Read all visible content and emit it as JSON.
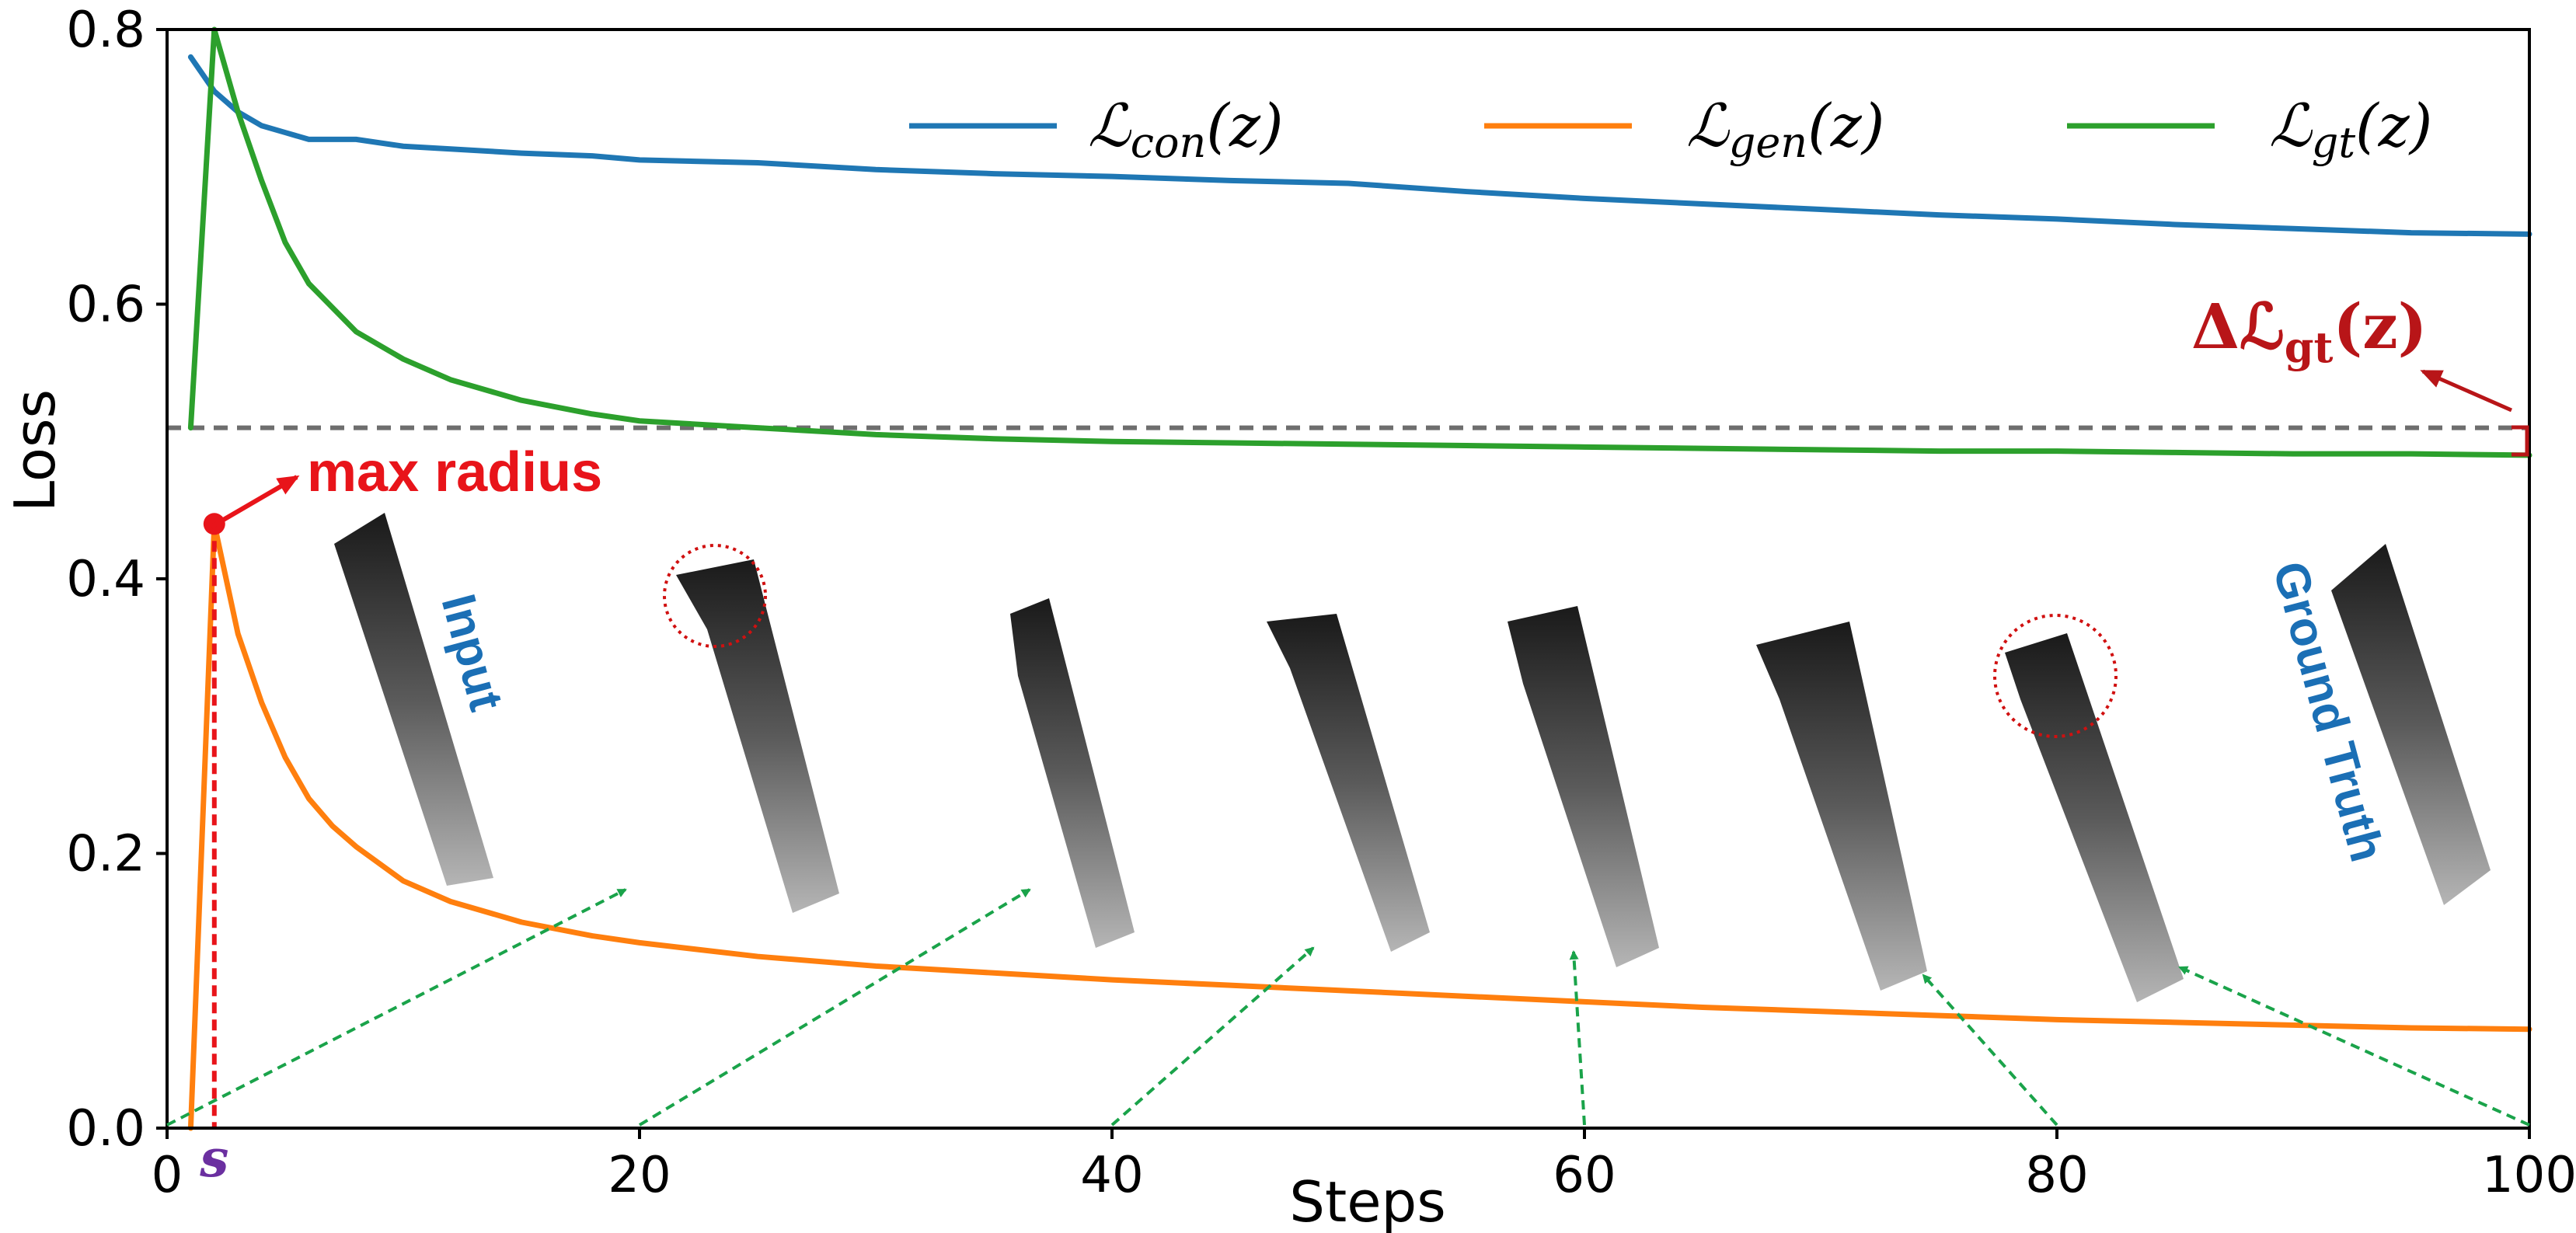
{
  "chart_data": {
    "type": "line",
    "xlabel": "Steps",
    "ylabel": "Loss",
    "xlim": [
      0,
      100
    ],
    "ylim": [
      0,
      0.8
    ],
    "xticks": [
      "0",
      "20",
      "40",
      "60",
      "80",
      "100"
    ],
    "yticks": [
      "0.0",
      "0.2",
      "0.4",
      "0.6",
      "0.8"
    ],
    "legend_position": "top-right",
    "grid": false,
    "series": [
      {
        "name": "L_con(z)",
        "legend_main": "ℒ",
        "legend_sub": "con",
        "legend_tail": "(z)",
        "color": "#1f77b4",
        "x": [
          1,
          2,
          3,
          4,
          5,
          6,
          8,
          10,
          12,
          15,
          18,
          20,
          25,
          30,
          35,
          40,
          45,
          50,
          55,
          60,
          65,
          70,
          75,
          80,
          85,
          90,
          95,
          100
        ],
        "y": [
          0.78,
          0.755,
          0.74,
          0.73,
          0.725,
          0.72,
          0.72,
          0.715,
          0.713,
          0.71,
          0.708,
          0.705,
          0.703,
          0.698,
          0.695,
          0.693,
          0.69,
          0.688,
          0.682,
          0.677,
          0.673,
          0.669,
          0.665,
          0.662,
          0.658,
          0.655,
          0.652,
          0.651
        ]
      },
      {
        "name": "L_gen(z)",
        "legend_main": "ℒ",
        "legend_sub": "gen",
        "legend_tail": "(z)",
        "color": "#ff7f0e",
        "x": [
          1,
          2,
          3,
          4,
          5,
          6,
          7,
          8,
          10,
          12,
          15,
          18,
          20,
          25,
          30,
          35,
          40,
          45,
          50,
          55,
          60,
          65,
          70,
          75,
          80,
          85,
          90,
          95,
          100
        ],
        "y": [
          0.0,
          0.44,
          0.36,
          0.31,
          0.27,
          0.24,
          0.22,
          0.205,
          0.18,
          0.165,
          0.15,
          0.14,
          0.135,
          0.125,
          0.118,
          0.113,
          0.108,
          0.104,
          0.1,
          0.096,
          0.092,
          0.088,
          0.085,
          0.082,
          0.079,
          0.077,
          0.075,
          0.073,
          0.072
        ]
      },
      {
        "name": "L_gt(z)",
        "legend_main": "ℒ",
        "legend_sub": "gt",
        "legend_tail": "(z)",
        "color": "#2ca02c",
        "x": [
          1,
          2,
          3,
          4,
          5,
          6,
          8,
          10,
          12,
          15,
          18,
          20,
          25,
          30,
          35,
          40,
          45,
          50,
          55,
          60,
          65,
          70,
          75,
          80,
          85,
          90,
          95,
          100
        ],
        "y": [
          0.51,
          0.8,
          0.74,
          0.69,
          0.645,
          0.615,
          0.58,
          0.56,
          0.545,
          0.53,
          0.52,
          0.515,
          0.51,
          0.505,
          0.502,
          0.5,
          0.499,
          0.498,
          0.497,
          0.496,
          0.495,
          0.494,
          0.493,
          0.493,
          0.492,
          0.491,
          0.491,
          0.49
        ]
      }
    ],
    "reference_line": {
      "y": 0.51,
      "style": "dashed",
      "color": "#6e6e6e"
    },
    "annotations": {
      "max_radius": {
        "text": "max radius",
        "x": 2,
        "y": 0.44
      },
      "s_marker": {
        "text": "s",
        "x": 2
      },
      "delta_label": {
        "prefix": "Δℒ",
        "sub": "gt",
        "tail": "(z)"
      },
      "input_label": "Input",
      "ground_truth_label": "Ground Truth",
      "arrow_origins_x": [
        0,
        20,
        40,
        60,
        80,
        100
      ]
    }
  },
  "colors": {
    "accent_red": "#e8141a",
    "dark_red": "#b81518",
    "label_blue": "#1b6fb5",
    "arrow_green": "#1aa34a",
    "s_purple": "#6b2fa0"
  }
}
